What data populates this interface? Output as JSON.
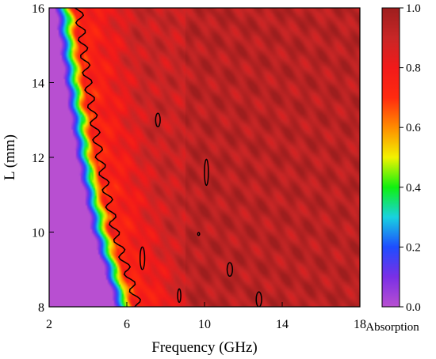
{
  "chart_data": {
    "type": "heatmap",
    "title": "",
    "xlabel": "Frequency (GHz)",
    "ylabel": "L (mm)",
    "xlim": [
      2,
      18
    ],
    "ylim": [
      8,
      16
    ],
    "x_ticks": [
      2,
      6,
      10,
      14,
      18
    ],
    "y_ticks": [
      8,
      10,
      12,
      14,
      16
    ],
    "x_tick_labels": [
      "2",
      "6",
      "10",
      "14",
      "18"
    ],
    "y_tick_labels": [
      "8",
      "10",
      "12",
      "14",
      "16"
    ],
    "colorbar": {
      "label": "Absorption",
      "range": [
        0.0,
        1.0
      ],
      "ticks": [
        0.0,
        0.2,
        0.4,
        0.6,
        0.8,
        1.0
      ],
      "tick_labels": [
        "0.0",
        "0.2",
        "0.4",
        "0.6",
        "0.8",
        "1.0"
      ],
      "colormap": [
        {
          "v": 0.0,
          "color": "#b84fd1"
        },
        {
          "v": 0.1,
          "color": "#7a2fe6"
        },
        {
          "v": 0.2,
          "color": "#1e4dff"
        },
        {
          "v": 0.3,
          "color": "#18d2e0"
        },
        {
          "v": 0.4,
          "color": "#10f010"
        },
        {
          "v": 0.5,
          "color": "#f2f200"
        },
        {
          "v": 0.6,
          "color": "#ff8c00"
        },
        {
          "v": 0.7,
          "color": "#ff2a0f"
        },
        {
          "v": 0.8,
          "color": "#f21a1a"
        },
        {
          "v": 0.9,
          "color": "#c82626"
        },
        {
          "v": 1.0,
          "color": "#9e1e1e"
        }
      ]
    },
    "absorption_model": {
      "edge_freq_at_L": [
        {
          "L": 8,
          "freq": 6.0
        },
        {
          "L": 10,
          "freq": 4.8
        },
        {
          "L": 12,
          "freq": 4.0
        },
        {
          "L": 14,
          "freq": 3.4
        },
        {
          "L": 16,
          "freq": 2.9
        }
      ],
      "transition_width_ghz": 0.6,
      "plateau_value": 0.9
    },
    "contour_level": 0.9
  }
}
